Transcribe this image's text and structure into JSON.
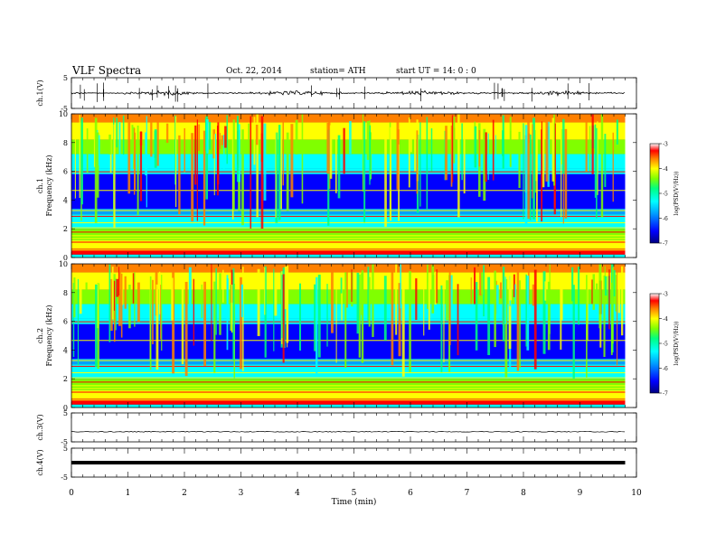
{
  "header": {
    "title": "VLF Spectra",
    "date": "Oct. 22, 2014",
    "station": "station= ATH",
    "start": "start  UT =   14: 0  : 0"
  },
  "chart_data": [
    {
      "type": "line",
      "ylabel": "ch.1(V)",
      "ylim": [
        -5,
        5
      ],
      "y_ticks": [
        "5",
        "-5"
      ],
      "baseline_value": 0,
      "color": "#000000"
    },
    {
      "type": "heatmap",
      "ylabel": "Frequency (kHz)",
      "channel_label": "ch.1",
      "ylim": [
        0,
        10
      ],
      "y_ticks": [
        "0",
        "2",
        "4",
        "6",
        "8",
        "10"
      ],
      "colorbar": {
        "label": "log(PSD(V²/Hz))",
        "ticks": [
          "-3",
          "-4",
          "-5",
          "-6",
          "-7"
        ],
        "range": [
          -7,
          -3
        ]
      },
      "colormap": [
        "#000080",
        "#0000ff",
        "#00a0ff",
        "#00ffff",
        "#00ff80",
        "#80ff00",
        "#ffff00",
        "#ff8000",
        "#ff0000",
        "#ffffff"
      ]
    },
    {
      "type": "heatmap",
      "ylabel": "Frequency (kHz)",
      "channel_label": "ch.2",
      "ylim": [
        0,
        10
      ],
      "y_ticks": [
        "0",
        "2",
        "4",
        "6",
        "8",
        "10"
      ],
      "colorbar": {
        "label": "log(PSD(V²/Hz))",
        "ticks": [
          "-3",
          "-4",
          "-5",
          "-6",
          "-7"
        ],
        "range": [
          -7,
          -3
        ]
      },
      "colormap": [
        "#000080",
        "#0000ff",
        "#00a0ff",
        "#00ffff",
        "#00ff80",
        "#80ff00",
        "#ffff00",
        "#ff8000",
        "#ff0000",
        "#ffffff"
      ]
    },
    {
      "type": "line",
      "ylabel": "ch.3(V)",
      "ylim": [
        -5,
        5
      ],
      "y_ticks": [
        "5",
        "-5"
      ],
      "baseline_value": -1.5
    },
    {
      "type": "line",
      "ylabel": "ch.4(V)",
      "ylim": [
        -5,
        5
      ],
      "y_ticks": [
        "5",
        "-5"
      ],
      "baseline_value": 0
    }
  ],
  "x_axis": {
    "label": "Time (min)",
    "range": [
      0,
      10
    ],
    "data_end": 9.8,
    "ticks": [
      "0",
      "1",
      "2",
      "3",
      "4",
      "5",
      "6",
      "7",
      "8",
      "9",
      "10"
    ]
  }
}
